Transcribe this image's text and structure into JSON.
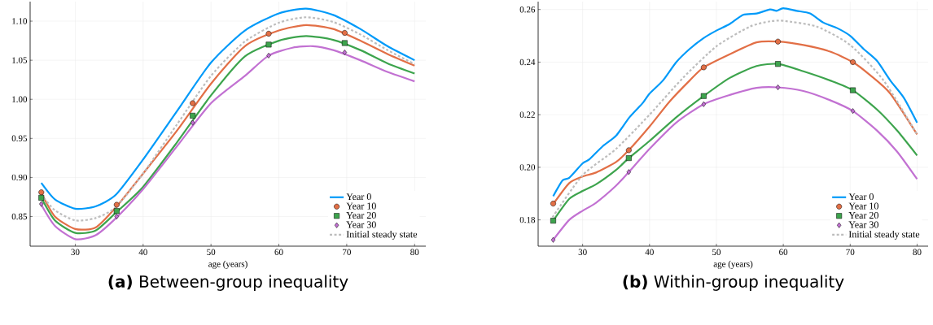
{
  "chart_data": [
    {
      "type": "line",
      "title": "**(a)** Between-group inequality",
      "xlabel": "age (years)",
      "xlim": [
        23.35,
        81.65
      ],
      "ylim": [
        0.812,
        1.125
      ],
      "xticks": [
        30,
        40,
        50,
        60,
        70,
        80
      ],
      "yticks": [
        0.85,
        {
          "value": 0.9,
          "label": "0.90"
        },
        0.95,
        {
          "value": 1.0,
          "label": "1.00"
        },
        1.05,
        {
          "value": 1.1,
          "label": "1.10"
        }
      ],
      "grid": true,
      "legend": "bottom right",
      "series": [
        {
          "name": "Year 0",
          "color": "#009af9",
          "x": [
            25,
            27,
            30,
            33,
            36,
            40,
            45,
            50,
            55,
            60,
            64,
            68,
            72,
            76,
            80
          ],
          "values": [
            0.893,
            0.872,
            0.86,
            0.863,
            0.878,
            0.923,
            0.985,
            1.047,
            1.088,
            1.11,
            1.116,
            1.108,
            1.09,
            1.068,
            1.05
          ]
        },
        {
          "color": "#e26f46",
          "x": [
            25,
            27,
            30,
            33,
            36,
            40,
            45,
            50,
            55,
            60,
            64,
            68,
            72,
            76,
            80
          ],
          "values": [
            0.88,
            0.85,
            0.834,
            0.836,
            0.862,
            0.905,
            0.96,
            1.02,
            1.068,
            1.088,
            1.095,
            1.09,
            1.075,
            1.058,
            1.043
          ]
        },
        {
          "name": "Year 10",
          "type": "scatter",
          "marker": "circle",
          "color": "#e26f46",
          "x": [
            25,
            36.1,
            47.3,
            58.5,
            69.7
          ],
          "values": [
            0.881,
            0.865,
            0.995,
            1.084,
            1.085
          ]
        },
        {
          "color": "#3da44d",
          "x": [
            25,
            27,
            30,
            33,
            36,
            40,
            45,
            50,
            55,
            60,
            64,
            68,
            72,
            76,
            80
          ],
          "values": [
            0.874,
            0.845,
            0.829,
            0.832,
            0.855,
            0.888,
            0.945,
            1.005,
            1.055,
            1.075,
            1.081,
            1.076,
            1.063,
            1.046,
            1.033
          ]
        },
        {
          "name": "Year 20",
          "type": "scatter",
          "marker": "square",
          "color": "#3da44d",
          "x": [
            25,
            36.1,
            47.3,
            58.5,
            69.7
          ],
          "values": [
            0.874,
            0.857,
            0.979,
            1.07,
            1.072
          ]
        },
        {
          "color": "#c271d2",
          "x": [
            25,
            27,
            30,
            33,
            36,
            40,
            45,
            50,
            55,
            58.5,
            62,
            65,
            68,
            72,
            76,
            80
          ],
          "values": [
            0.865,
            0.838,
            0.821,
            0.826,
            0.848,
            0.885,
            0.94,
            0.995,
            1.03,
            1.056,
            1.066,
            1.068,
            1.063,
            1.05,
            1.035,
            1.023
          ]
        },
        {
          "name": "Year 30",
          "type": "scatter",
          "marker": "diamond",
          "color": "#c271d2",
          "x": [
            25,
            36.1,
            47.3,
            58.5,
            69.7
          ],
          "values": [
            0.866,
            0.85,
            0.97,
            1.056,
            1.06
          ]
        },
        {
          "name": "Initial steady state",
          "line_style": "dotted",
          "color": "#bdbdbd",
          "x": [
            25,
            27,
            30,
            33,
            36,
            40,
            45,
            50,
            55,
            60,
            64,
            68,
            72,
            76,
            80
          ],
          "values": [
            0.878,
            0.858,
            0.845,
            0.848,
            0.862,
            0.905,
            0.968,
            1.03,
            1.074,
            1.098,
            1.105,
            1.099,
            1.083,
            1.063,
            1.045
          ]
        }
      ]
    },
    {
      "type": "line",
      "title": "**(b)** Within-group inequality",
      "xlabel": "age (years)",
      "xlim": [
        23.35,
        81.65
      ],
      "ylim": [
        0.17,
        0.263
      ],
      "xticks": [
        30,
        40,
        50,
        60,
        70,
        80
      ],
      "yticks": [
        0.18,
        {
          "value": 0.2,
          "label": "0.20"
        },
        0.22,
        0.24,
        0.26
      ],
      "grid": true,
      "legend": "bottom right",
      "series": [
        {
          "name": "Year 0",
          "color": "#009af9",
          "x": [
            25.6,
            27,
            28,
            30,
            31,
            33,
            35,
            37,
            39,
            40,
            42,
            44,
            46,
            48,
            50,
            52,
            54,
            56,
            58,
            59,
            60,
            62,
            64,
            66,
            68,
            70,
            72,
            74,
            76,
            78,
            80
          ],
          "values": [
            0.189,
            0.195,
            0.196,
            0.2015,
            0.203,
            0.208,
            0.212,
            0.219,
            0.2245,
            0.228,
            0.233,
            0.24,
            0.245,
            0.249,
            0.252,
            0.2545,
            0.258,
            0.2585,
            0.26,
            0.2595,
            0.2605,
            0.2595,
            0.2585,
            0.255,
            0.253,
            0.25,
            0.245,
            0.2405,
            0.233,
            0.2265,
            0.217
          ]
        },
        {
          "color": "#e26f46",
          "x": [
            25.6,
            28,
            30,
            32,
            35,
            36.9,
            40,
            43,
            46,
            48.1,
            52,
            56,
            59.2,
            63,
            67,
            70.4,
            73,
            76,
            80
          ],
          "values": [
            0.186,
            0.194,
            0.1965,
            0.198,
            0.202,
            0.2065,
            0.2155,
            0.225,
            0.233,
            0.238,
            0.243,
            0.2475,
            0.2478,
            0.2465,
            0.244,
            0.24,
            0.235,
            0.228,
            0.2125
          ]
        },
        {
          "name": "Year 10",
          "type": "scatter",
          "marker": "circle",
          "color": "#e26f46",
          "x": [
            25.6,
            36.9,
            48.1,
            59.2,
            70.4
          ],
          "values": [
            0.1862,
            0.2065,
            0.238,
            0.2478,
            0.24
          ]
        },
        {
          "color": "#3da44d",
          "x": [
            25.6,
            28,
            30,
            32,
            35,
            36.9,
            40,
            44,
            48.1,
            52,
            56,
            59.2,
            63,
            67,
            70.4,
            74,
            77,
            80
          ],
          "values": [
            0.1797,
            0.188,
            0.191,
            0.1935,
            0.199,
            0.2035,
            0.21,
            0.219,
            0.2271,
            0.234,
            0.2385,
            0.2393,
            0.2365,
            0.233,
            0.2293,
            0.222,
            0.214,
            0.2045
          ]
        },
        {
          "name": "Year 20",
          "type": "scatter",
          "marker": "square",
          "color": "#3da44d",
          "x": [
            25.6,
            36.9,
            48.1,
            59.2,
            70.4
          ],
          "values": [
            0.1797,
            0.2035,
            0.2271,
            0.2393,
            0.2293
          ]
        },
        {
          "color": "#c271d2",
          "x": [
            25.6,
            28,
            30,
            32,
            35,
            36.9,
            40,
            44,
            48.1,
            52,
            56,
            59.2,
            63,
            67,
            70.4,
            74,
            77,
            80
          ],
          "values": [
            0.1724,
            0.18,
            0.1835,
            0.1865,
            0.193,
            0.1982,
            0.207,
            0.217,
            0.224,
            0.2275,
            0.2302,
            0.2304,
            0.229,
            0.2255,
            0.2214,
            0.214,
            0.206,
            0.1955
          ]
        },
        {
          "name": "Year 30",
          "type": "scatter",
          "marker": "diamond",
          "color": "#c271d2",
          "x": [
            25.6,
            36.9,
            48.1,
            59.2,
            70.4
          ],
          "values": [
            0.1724,
            0.1982,
            0.224,
            0.2304,
            0.2214
          ]
        },
        {
          "name": "Initial steady state",
          "line_style": "dotted",
          "color": "#bdbdbd",
          "x": [
            25.5,
            30,
            35,
            40,
            45,
            50,
            55,
            58,
            60,
            65,
            70,
            75,
            80
          ],
          "values": [
            0.181,
            0.197,
            0.207,
            0.22,
            0.234,
            0.246,
            0.2535,
            0.2555,
            0.2557,
            0.2535,
            0.2465,
            0.233,
            0.2125
          ]
        }
      ]
    }
  ]
}
